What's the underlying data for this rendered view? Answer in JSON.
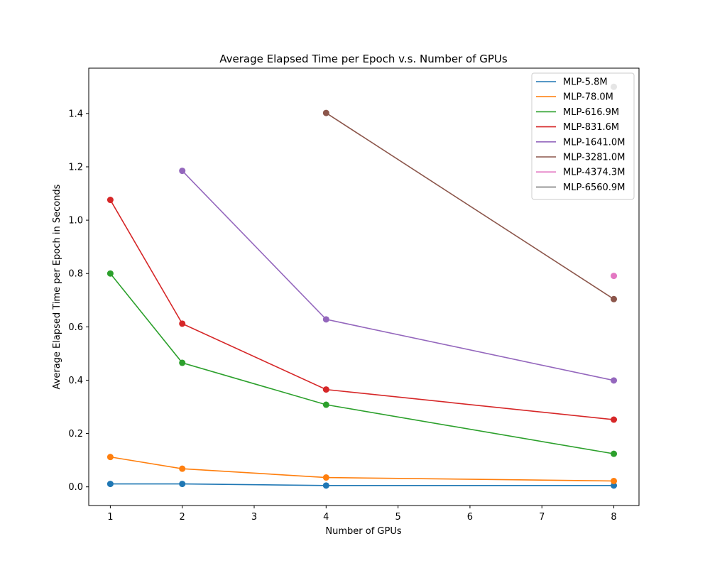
{
  "chart_data": {
    "type": "line",
    "title": "Average Elapsed Time per Epoch v.s. Number of GPUs",
    "xlabel": "Number of GPUs",
    "ylabel": "Average Elapsed Time per Epoch in Seconds",
    "xlim": [
      0.7,
      8.35
    ],
    "ylim": [
      -0.07,
      1.57
    ],
    "xticks": [
      1,
      2,
      3,
      4,
      5,
      6,
      7,
      8
    ],
    "yticks": [
      0.0,
      0.2,
      0.4,
      0.6,
      0.8,
      1.0,
      1.2,
      1.4
    ],
    "grid": false,
    "legend_position": "top-right",
    "series": [
      {
        "name": "MLP-5.8M",
        "color": "#1f77b4",
        "x": [
          1,
          2,
          4,
          8
        ],
        "y": [
          0.011,
          0.011,
          0.005,
          0.005
        ]
      },
      {
        "name": "MLP-78.0M",
        "color": "#ff7f0e",
        "x": [
          1,
          2,
          4,
          8
        ],
        "y": [
          0.112,
          0.068,
          0.035,
          0.022
        ]
      },
      {
        "name": "MLP-616.9M",
        "color": "#2ca02c",
        "x": [
          1,
          2,
          4,
          8
        ],
        "y": [
          0.8,
          0.465,
          0.308,
          0.124
        ]
      },
      {
        "name": "MLP-831.6M",
        "color": "#d62728",
        "x": [
          1,
          2,
          4,
          8
        ],
        "y": [
          1.076,
          0.612,
          0.365,
          0.252
        ]
      },
      {
        "name": "MLP-1641.0M",
        "color": "#9467bd",
        "x": [
          2,
          4,
          8
        ],
        "y": [
          1.185,
          0.628,
          0.399
        ]
      },
      {
        "name": "MLP-3281.0M",
        "color": "#8c564b",
        "x": [
          4,
          8
        ],
        "y": [
          1.402,
          0.704
        ]
      },
      {
        "name": "MLP-4374.3M",
        "color": "#e377c2",
        "x": [
          8
        ],
        "y": [
          0.791
        ]
      },
      {
        "name": "MLP-6560.9M",
        "color": "#7f7f7f",
        "x": [
          8
        ],
        "y": [
          1.5
        ]
      }
    ]
  }
}
